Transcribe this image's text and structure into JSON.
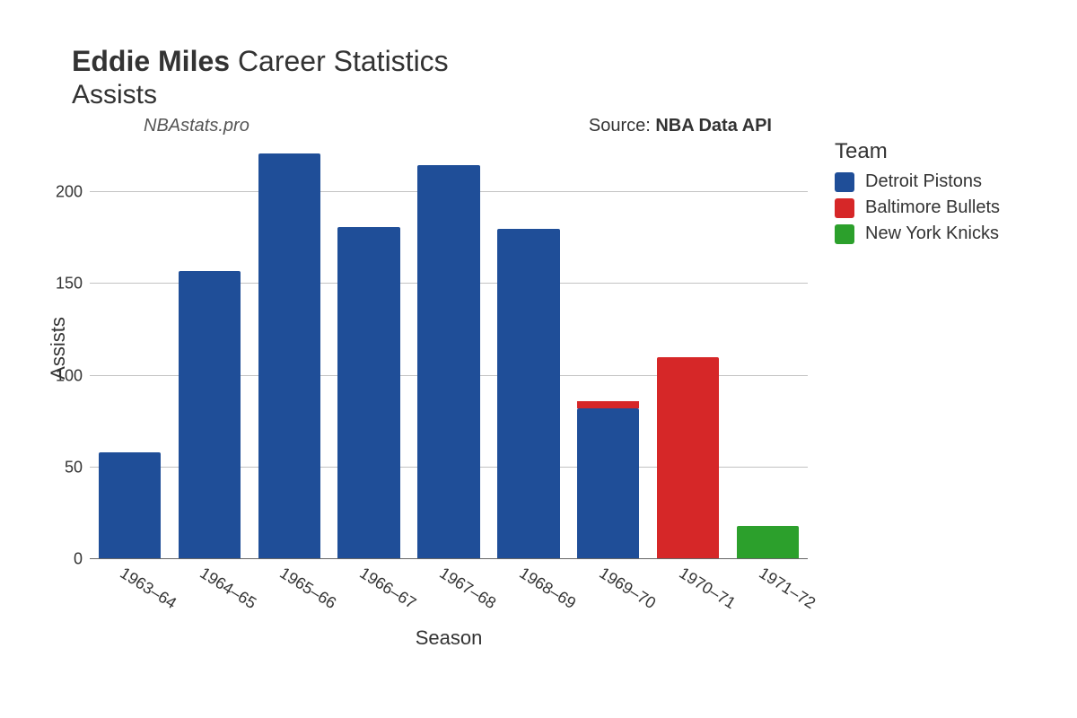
{
  "title": {
    "player": "Eddie Miles",
    "suffix": "Career Statistics",
    "stat": "Assists"
  },
  "watermark": "NBAstats.pro",
  "source_prefix": "Source: ",
  "source_name": "NBA Data API",
  "chart": {
    "type": "stacked-bar",
    "xlabel": "Season",
    "ylabel": "Assists",
    "ylim": [
      0,
      230
    ],
    "yticks": [
      0,
      50,
      100,
      150,
      200
    ],
    "background_color": "#ffffff",
    "grid_color": "#888888",
    "label_fontsize": 22,
    "tick_fontsize": 18,
    "bar_width": 0.78,
    "categories": [
      "1963–64",
      "1964–65",
      "1965–66",
      "1966–67",
      "1967–68",
      "1968–69",
      "1969–70",
      "1970–71",
      "1971–72"
    ],
    "teams": {
      "detroit": {
        "label": "Detroit Pistons",
        "color": "#1f4e98"
      },
      "baltimore": {
        "label": "Baltimore Bullets",
        "color": "#d62728"
      },
      "newyork": {
        "label": "New York Knicks",
        "color": "#2ca02c"
      }
    },
    "legend_order": [
      "detroit",
      "baltimore",
      "newyork"
    ],
    "series": [
      [
        {
          "team": "detroit",
          "value": 58
        }
      ],
      [
        {
          "team": "detroit",
          "value": 157
        }
      ],
      [
        {
          "team": "detroit",
          "value": 221
        }
      ],
      [
        {
          "team": "detroit",
          "value": 181
        }
      ],
      [
        {
          "team": "detroit",
          "value": 215
        }
      ],
      [
        {
          "team": "detroit",
          "value": 180
        }
      ],
      [
        {
          "team": "detroit",
          "value": 82
        },
        {
          "team": "baltimore",
          "value": 4
        }
      ],
      [
        {
          "team": "baltimore",
          "value": 110
        }
      ],
      [
        {
          "team": "newyork",
          "value": 18
        }
      ]
    ]
  },
  "legend_title": "Team"
}
